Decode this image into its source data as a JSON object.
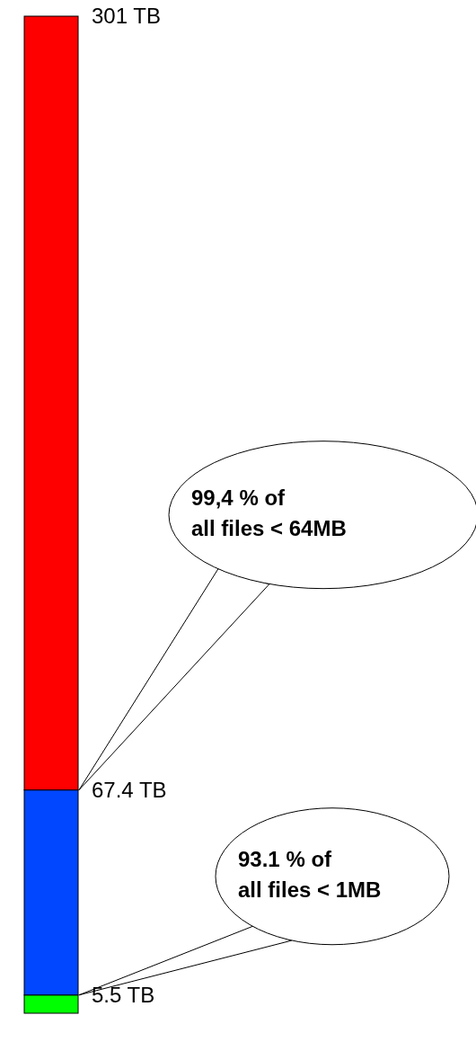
{
  "chart_data": {
    "type": "bar",
    "stacked": true,
    "categories": [
      null
    ],
    "series": [
      {
        "color": "#00ff00",
        "values": [
          5.5
        ]
      },
      {
        "color": "#0047ff",
        "values": [
          61.9
        ]
      },
      {
        "color": "#ff0000",
        "values": [
          233.6
        ]
      }
    ],
    "ylim": [
      0,
      301
    ],
    "yticks": [
      {
        "value": 5.5,
        "label": "5.5 TB"
      },
      {
        "value": 67.4,
        "label": "67.4 TB"
      },
      {
        "value": 301,
        "label": "301 TB"
      }
    ],
    "tick_labels": "y",
    "annotations": [
      "99,4 % of all files < 64MB",
      "93.1 % of all files < 1MB"
    ]
  }
}
